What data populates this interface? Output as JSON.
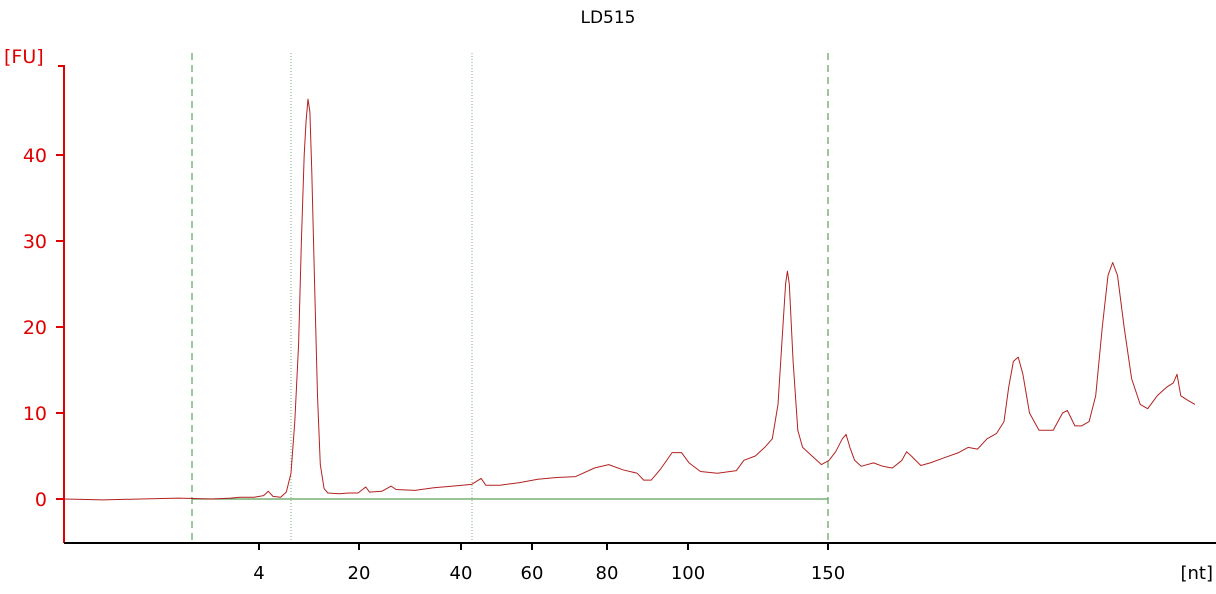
{
  "chart_data": {
    "type": "line",
    "title": "LD515",
    "ylabel": "[FU]",
    "xlabel": "[nt]",
    "ylim": [
      -5,
      52
    ],
    "y_ticks": [
      0,
      10,
      20,
      30,
      40
    ],
    "x_tick_labels": [
      "4",
      "20",
      "40",
      "60",
      "80",
      "100",
      "150"
    ],
    "grid": false,
    "colors": {
      "trace": "#b22222",
      "y_axis": "#e00000",
      "x_axis": "#000000",
      "baseline": "#5aa05a",
      "dashed_marker": "#5aa05a",
      "dotted_marker": "#7fae7f"
    },
    "series": [
      {
        "values": [
          [
            0,
            0.0
          ],
          [
            40,
            -0.1
          ],
          [
            80,
            0.0
          ],
          [
            120,
            0.1
          ],
          [
            155,
            0.0
          ],
          [
            175,
            0.1
          ],
          [
            185,
            0.2
          ],
          [
            200,
            0.2
          ],
          [
            210,
            0.4
          ],
          [
            215,
            0.9
          ],
          [
            220,
            0.3
          ],
          [
            228,
            0.2
          ],
          [
            234,
            0.8
          ],
          [
            239,
            3.0
          ],
          [
            243,
            9.0
          ],
          [
            247,
            18.0
          ],
          [
            250,
            30.0
          ],
          [
            253,
            40.0
          ],
          [
            255,
            44.0
          ],
          [
            257,
            46.5
          ],
          [
            259,
            45.0
          ],
          [
            261,
            38.0
          ],
          [
            264,
            25.0
          ],
          [
            267,
            12.0
          ],
          [
            270,
            4.0
          ],
          [
            274,
            1.2
          ],
          [
            278,
            0.7
          ],
          [
            290,
            0.6
          ],
          [
            300,
            0.7
          ],
          [
            310,
            0.7
          ],
          [
            318,
            1.4
          ],
          [
            322,
            0.8
          ],
          [
            335,
            0.9
          ],
          [
            345,
            1.5
          ],
          [
            350,
            1.1
          ],
          [
            370,
            1.0
          ],
          [
            390,
            1.3
          ],
          [
            410,
            1.5
          ],
          [
            430,
            1.7
          ],
          [
            440,
            2.4
          ],
          [
            445,
            1.6
          ],
          [
            460,
            1.6
          ],
          [
            480,
            1.9
          ],
          [
            500,
            2.3
          ],
          [
            520,
            2.5
          ],
          [
            540,
            2.6
          ],
          [
            560,
            3.6
          ],
          [
            575,
            4.0
          ],
          [
            590,
            3.4
          ],
          [
            605,
            3.0
          ],
          [
            612,
            2.2
          ],
          [
            620,
            2.2
          ],
          [
            630,
            3.5
          ],
          [
            642,
            5.4
          ],
          [
            652,
            5.4
          ],
          [
            660,
            4.2
          ],
          [
            672,
            3.2
          ],
          [
            690,
            3.0
          ],
          [
            710,
            3.3
          ],
          [
            718,
            4.5
          ],
          [
            730,
            5.0
          ],
          [
            740,
            6.0
          ],
          [
            748,
            7.0
          ],
          [
            754,
            11.0
          ],
          [
            758,
            18.0
          ],
          [
            762,
            25.0
          ],
          [
            764,
            26.5
          ],
          [
            766,
            25.0
          ],
          [
            770,
            16.0
          ],
          [
            775,
            8.0
          ],
          [
            780,
            6.0
          ],
          [
            790,
            5.0
          ],
          [
            800,
            4.0
          ],
          [
            808,
            4.5
          ],
          [
            815,
            5.5
          ],
          [
            822,
            7.0
          ],
          [
            826,
            7.5
          ],
          [
            830,
            6.0
          ],
          [
            835,
            4.5
          ],
          [
            842,
            3.8
          ],
          [
            855,
            4.2
          ],
          [
            865,
            3.8
          ],
          [
            875,
            3.6
          ],
          [
            885,
            4.5
          ],
          [
            890,
            5.5
          ],
          [
            895,
            5.0
          ],
          [
            905,
            3.9
          ],
          [
            915,
            4.2
          ],
          [
            930,
            4.8
          ],
          [
            945,
            5.4
          ],
          [
            955,
            6.0
          ],
          [
            965,
            5.8
          ],
          [
            975,
            7.0
          ],
          [
            985,
            7.6
          ],
          [
            993,
            9.0
          ],
          [
            998,
            13.0
          ],
          [
            1003,
            16.0
          ],
          [
            1008,
            16.5
          ],
          [
            1013,
            14.5
          ],
          [
            1020,
            10.0
          ],
          [
            1030,
            8.0
          ],
          [
            1045,
            8.0
          ],
          [
            1055,
            10.0
          ],
          [
            1060,
            10.3
          ],
          [
            1068,
            8.5
          ],
          [
            1075,
            8.5
          ],
          [
            1083,
            9.0
          ],
          [
            1090,
            12.0
          ],
          [
            1097,
            20.0
          ],
          [
            1103,
            26.0
          ],
          [
            1108,
            27.5
          ],
          [
            1113,
            26.0
          ],
          [
            1120,
            20.0
          ],
          [
            1128,
            14.0
          ],
          [
            1137,
            11.0
          ],
          [
            1145,
            10.5
          ],
          [
            1155,
            12.0
          ],
          [
            1165,
            13.0
          ],
          [
            1172,
            13.5
          ],
          [
            1176,
            14.5
          ],
          [
            1180,
            12.0
          ],
          [
            1187,
            11.5
          ],
          [
            1195,
            11.0
          ]
        ]
      }
    ]
  }
}
